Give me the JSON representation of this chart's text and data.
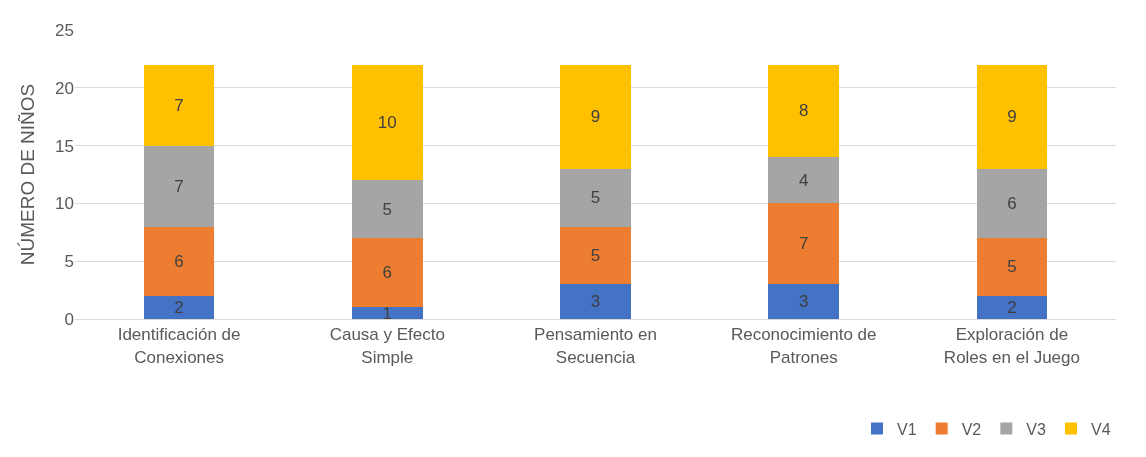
{
  "chart_data": {
    "type": "bar",
    "stacked": true,
    "ylabel": "NÚMERO DE NIÑOS",
    "categories": [
      "Identificación de Conexiones",
      "Causa y Efecto Simple",
      "Pensamiento en Secuencia",
      "Reconocimiento de Patrones",
      "Exploración de Roles en el Juego"
    ],
    "series": [
      {
        "name": "V1",
        "color": "#4472c4",
        "values": [
          2,
          1,
          3,
          3,
          2
        ]
      },
      {
        "name": "V2",
        "color": "#ed7d31",
        "values": [
          6,
          6,
          5,
          7,
          5
        ]
      },
      {
        "name": "V3",
        "color": "#a5a5a5",
        "values": [
          7,
          5,
          5,
          4,
          6
        ]
      },
      {
        "name": "V4",
        "color": "#ffc000",
        "values": [
          7,
          10,
          9,
          8,
          9
        ]
      }
    ],
    "ylim": [
      0,
      25
    ],
    "yticks": [
      0,
      5,
      10,
      15,
      20,
      25
    ],
    "grid": "y",
    "legend": "bottom right",
    "data_labels": true
  }
}
